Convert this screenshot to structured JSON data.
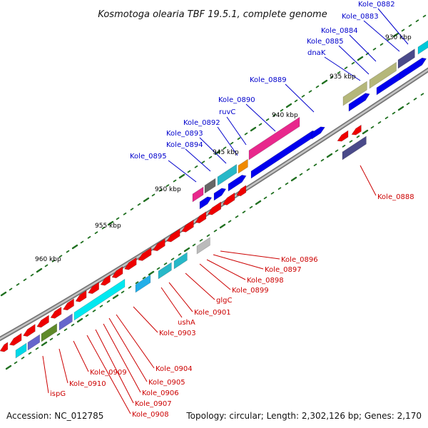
{
  "title": "Kosmotoga olearia TBF 19.5.1, complete genome",
  "footer": {
    "accession": "Accession: NC_012785",
    "summary": "Topology: circular; Length: 2,302,126 bp; Genes: 2,170"
  },
  "colors": {
    "forward_label": "#0000cc",
    "reverse_label": "#cc0000",
    "backbone": "#999999",
    "tick": "#207020"
  },
  "kbp_labels": [
    "930 kbp",
    "935 kbp",
    "940 kbp",
    "945 kbp",
    "950 kbp",
    "955 kbp",
    "960 kbp"
  ],
  "forward_labels": [
    "Kole_0882",
    "Kole_0883",
    "Kole_0884",
    "Kole_0885",
    "dnaK",
    "Kole_0889",
    "Kole_0890",
    "ruvC",
    "Kole_0892",
    "Kole_0893",
    "Kole_0894",
    "Kole_0895"
  ],
  "reverse_labels": [
    "Kole_0888",
    "Kole_0896",
    "Kole_0897",
    "Kole_0898",
    "Kole_0899",
    "glgC",
    "Kole_0901",
    "ushA",
    "Kole_0903",
    "Kole_0904",
    "Kole_0905",
    "Kole_0906",
    "Kole_0907",
    "Kole_0908",
    "Kole_0909",
    "Kole_0910",
    "ispG"
  ]
}
